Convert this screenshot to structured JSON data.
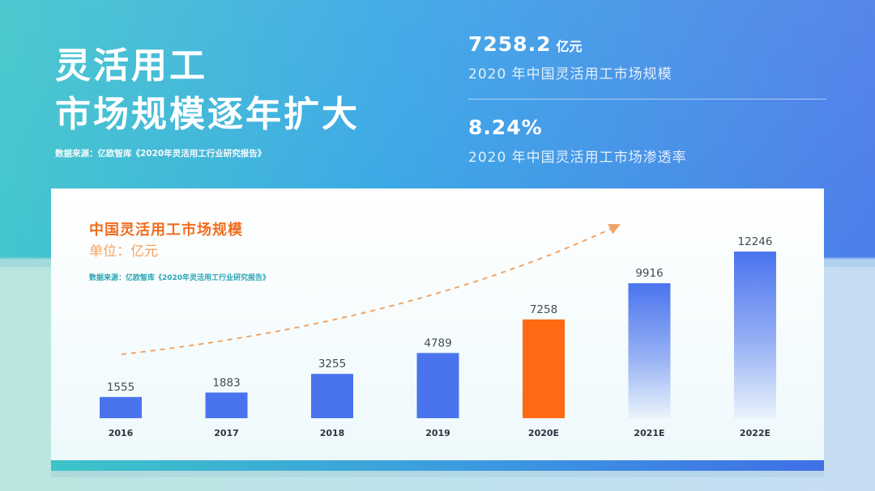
{
  "headline": {
    "line1": "灵活用工",
    "line2": "市场规模逐年扩大"
  },
  "source_top": "数据来源：亿欧智库《2020年灵活用工行业研究报告》",
  "stats": [
    {
      "value": "7258.2",
      "unit": "亿元",
      "desc": "2020 年中国灵活用工市场规模"
    },
    {
      "value": "8.24%",
      "unit": "",
      "desc": "2020 年中国灵活用工市场渗透率"
    }
  ],
  "colors": {
    "bar": "#4a74ee",
    "bar_highlight": "#ff6a12",
    "trend_arrow": "#f0a464"
  },
  "chart_data": {
    "type": "bar",
    "title": "中国灵活用工市场规模",
    "unit_label": "单位：亿元",
    "source": "数据来源：亿欧智库《2020年灵活用工行业研究报告》",
    "categories": [
      "2016",
      "2017",
      "2018",
      "2019",
      "2020E",
      "2021E",
      "2022E"
    ],
    "values": [
      1555,
      1883,
      3255,
      4789,
      7258,
      9916,
      12246
    ],
    "highlight_index": 4,
    "faded_indices": [
      5,
      6
    ],
    "ylim": [
      0,
      12246
    ],
    "grid": false,
    "legend": "none",
    "trend_arrow": true
  }
}
